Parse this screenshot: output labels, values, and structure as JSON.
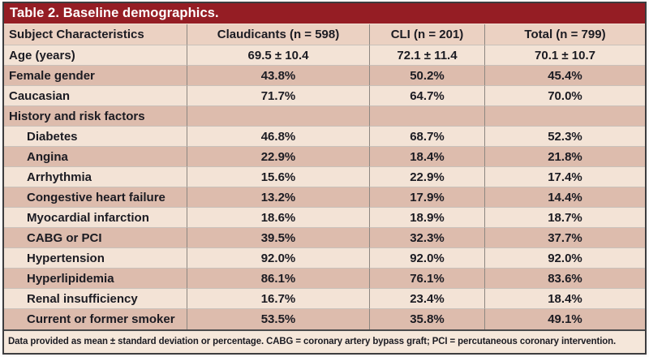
{
  "title_bar": {
    "title": "Table 2. Baseline demographics."
  },
  "table": {
    "columns": [
      "Subject Characteristics",
      "Claudicants (n = 598)",
      "CLI (n = 201)",
      "Total (n = 799)"
    ],
    "rows": [
      {
        "label": "Age (years)",
        "indent": false,
        "values": [
          "69.5 ± 10.4",
          "72.1 ± 11.4",
          "70.1 ± 10.7"
        ]
      },
      {
        "label": "Female gender",
        "indent": false,
        "values": [
          "43.8%",
          "50.2%",
          "45.4%"
        ]
      },
      {
        "label": "Caucasian",
        "indent": false,
        "values": [
          "71.7%",
          "64.7%",
          "70.0%"
        ]
      },
      {
        "label": "History and risk factors",
        "indent": false,
        "values": [
          "",
          "",
          ""
        ]
      },
      {
        "label": "Diabetes",
        "indent": true,
        "values": [
          "46.8%",
          "68.7%",
          "52.3%"
        ]
      },
      {
        "label": "Angina",
        "indent": true,
        "values": [
          "22.9%",
          "18.4%",
          "21.8%"
        ]
      },
      {
        "label": "Arrhythmia",
        "indent": true,
        "values": [
          "15.6%",
          "22.9%",
          "17.4%"
        ]
      },
      {
        "label": "Congestive heart failure",
        "indent": true,
        "values": [
          "13.2%",
          "17.9%",
          "14.4%"
        ]
      },
      {
        "label": "Myocardial infarction",
        "indent": true,
        "values": [
          "18.6%",
          "18.9%",
          "18.7%"
        ]
      },
      {
        "label": "CABG or PCI",
        "indent": true,
        "values": [
          "39.5%",
          "32.3%",
          "37.7%"
        ]
      },
      {
        "label": "Hypertension",
        "indent": true,
        "values": [
          "92.0%",
          "92.0%",
          "92.0%"
        ]
      },
      {
        "label": "Hyperlipidemia",
        "indent": true,
        "values": [
          "86.1%",
          "76.1%",
          "83.6%"
        ]
      },
      {
        "label": "Renal insufficiency",
        "indent": true,
        "values": [
          "16.7%",
          "23.4%",
          "18.4%"
        ]
      },
      {
        "label": "Current or former smoker",
        "indent": true,
        "values": [
          "53.5%",
          "35.8%",
          "49.1%"
        ]
      }
    ],
    "footnote": "Data provided as mean ± standard deviation or percentage. CABG = coronary artery bypass graft; PCI = percutaneous coronary intervention."
  },
  "colors": {
    "title_bar_bg": "#951d24",
    "title_text": "#ffffff",
    "header_row_bg": "#ebd1c2",
    "row_light_bg": "#f3e3d6",
    "row_dark_bg": "#ddbcad",
    "footer_bg": "#f5e7da",
    "outer_border": "#3d3d3f",
    "column_divider": "#8d8781",
    "row_divider": "#c9c1ba",
    "body_text": "#1b1b22"
  }
}
